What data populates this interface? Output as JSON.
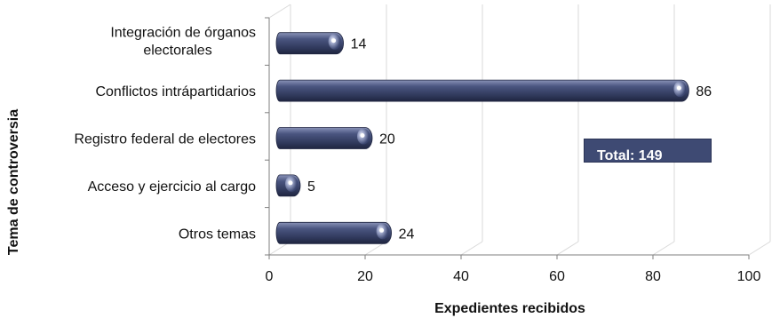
{
  "chart_data": {
    "type": "bar",
    "orientation": "horizontal",
    "categories": [
      [
        "Integración de órganos",
        "electorales"
      ],
      [
        "Conflictos intrápartidarios"
      ],
      [
        "Registro federal de electores"
      ],
      [
        "Acceso y ejercicio al cargo"
      ],
      [
        "Otros temas"
      ]
    ],
    "values": [
      14,
      86,
      20,
      5,
      24
    ],
    "xlabel": "Expedientes recibidos",
    "ylabel": "Tema de controversia",
    "xlim": [
      0,
      100
    ],
    "xticks": [
      0,
      20,
      40,
      60,
      80,
      100
    ],
    "grid": true,
    "bar_color": "#3b4670",
    "annotation": "Total: 149"
  }
}
